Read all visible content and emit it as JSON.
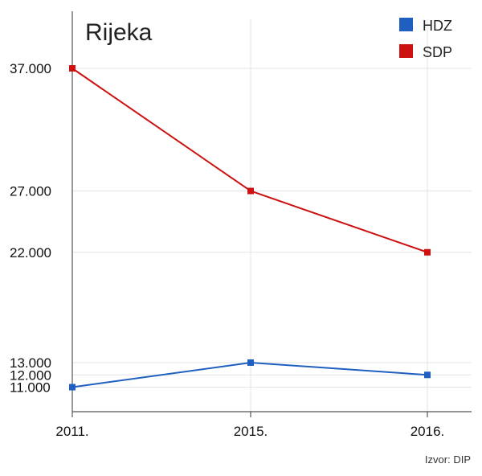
{
  "chart_data": {
    "type": "line",
    "title": "Rijeka",
    "xlabel": "",
    "ylabel": "",
    "categories": [
      "2011.",
      "2015.",
      "2016."
    ],
    "y_ticks": [
      11000,
      12000,
      13000,
      22000,
      27000,
      37000
    ],
    "y_tick_labels": [
      "11.000",
      "12.000",
      "13.000",
      "22.000",
      "27.000",
      "37.000"
    ],
    "ylim": [
      9000,
      41000
    ],
    "grid": true,
    "legend_position": "top-right",
    "series": [
      {
        "name": "HDZ",
        "color": "#1f5fbf",
        "values": [
          11000,
          13000,
          12000
        ]
      },
      {
        "name": "SDP",
        "color": "#cc1111",
        "values": [
          37000,
          27000,
          22000
        ]
      }
    ],
    "source": "Izvor: DIP"
  }
}
